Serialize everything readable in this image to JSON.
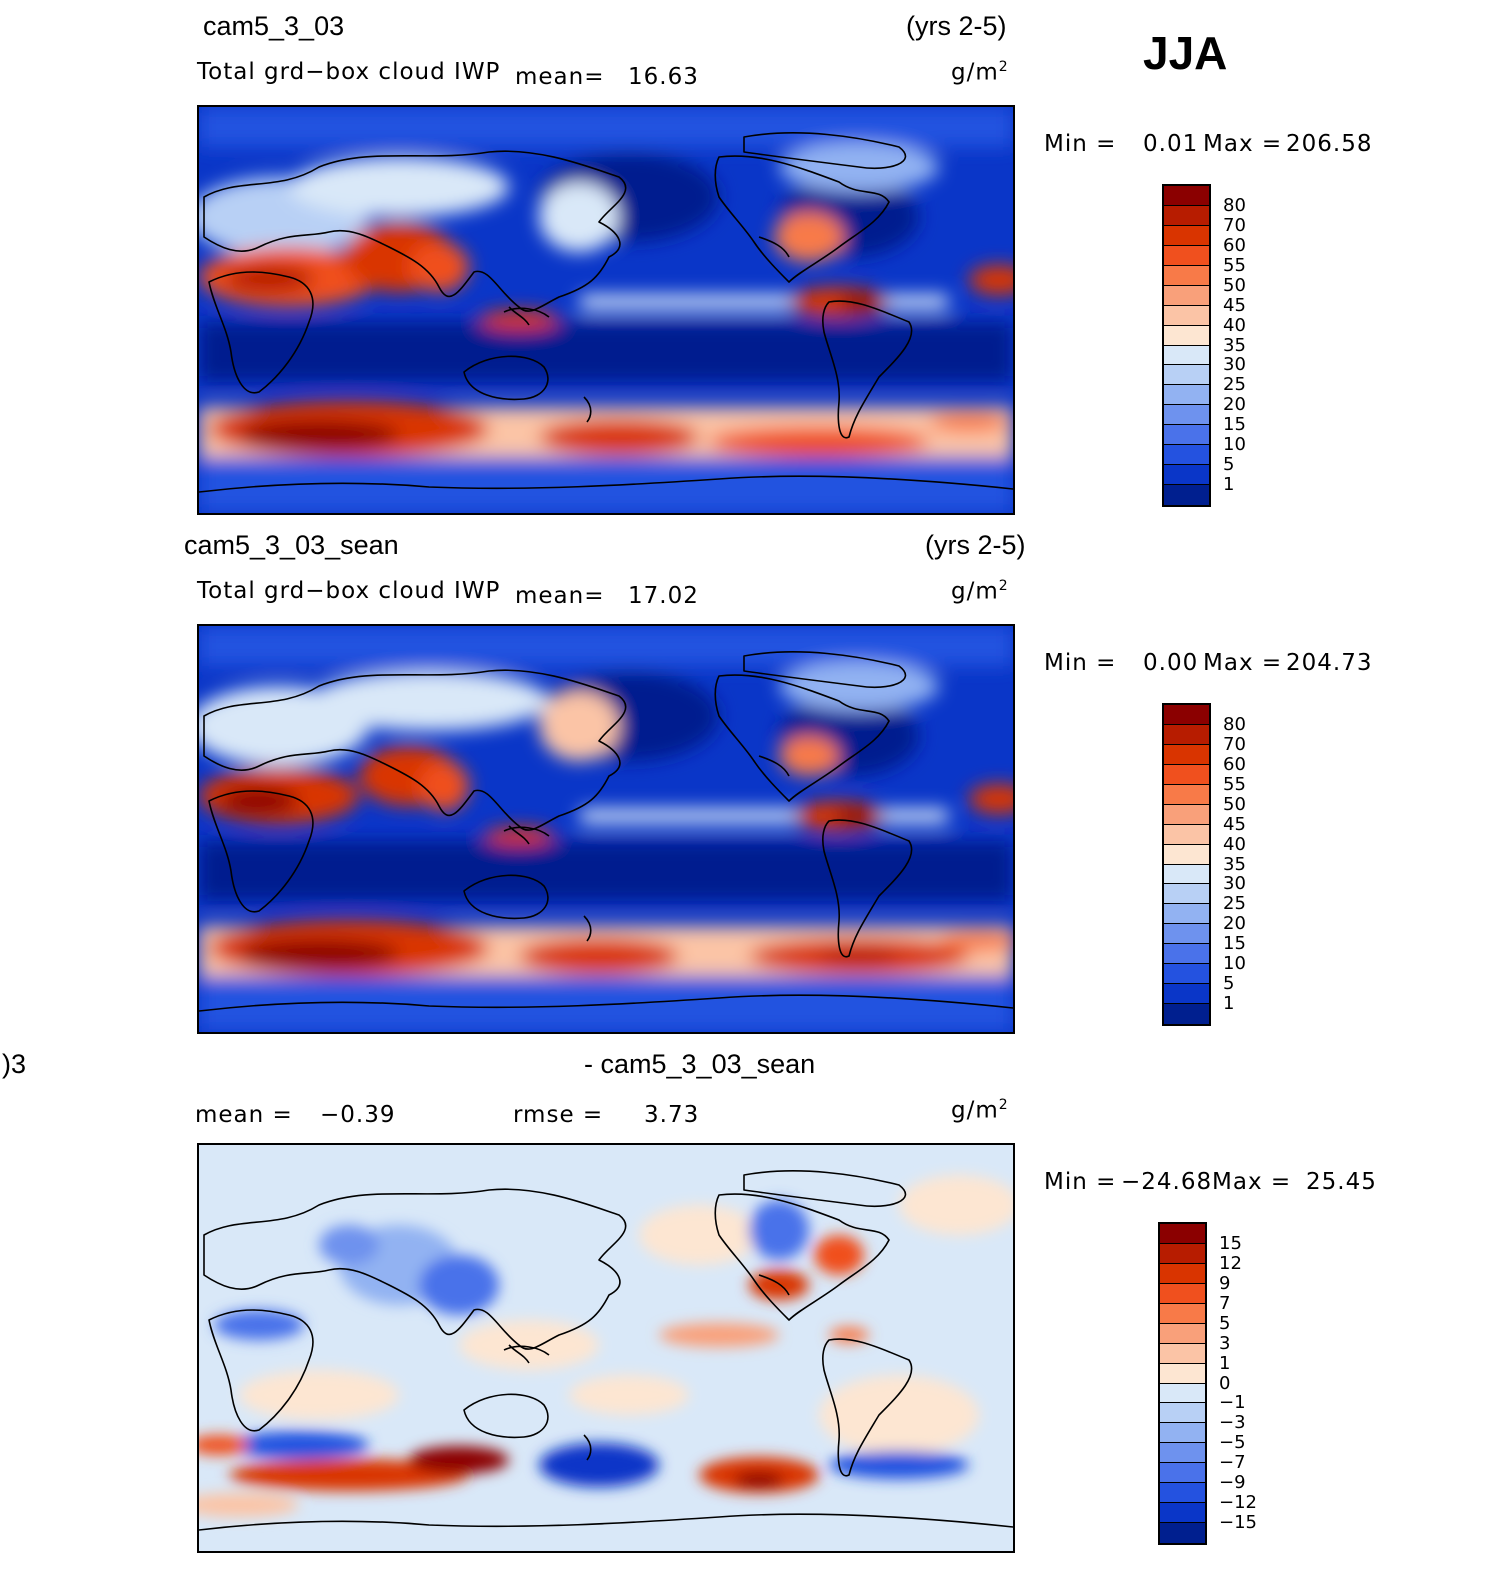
{
  "season": "JJA",
  "panels": [
    {
      "case": "cam5_3_03",
      "years": "(yrs 2-5)",
      "variable": "Total grd−box cloud IWP",
      "mean_label": "mean=",
      "mean_value": "16.63",
      "units": "g/m",
      "units_exp": "2",
      "stats": {
        "min_label": "Min =",
        "min_value": "0.01",
        "max_label": "Max =",
        "max_value": "206.58"
      },
      "colorbar": {
        "levels": [
          "80",
          "70",
          "60",
          "55",
          "50",
          "45",
          "40",
          "35",
          "30",
          "25",
          "20",
          "15",
          "10",
          "5",
          "1"
        ],
        "colors": [
          "#8b0000",
          "#b71c00",
          "#d93400",
          "#f0501e",
          "#f87a48",
          "#f9a07a",
          "#fbc4a6",
          "#fde6d2",
          "#d9e8f8",
          "#b8d0f5",
          "#92b2f2",
          "#6e92ee",
          "#4a72ea",
          "#2452e0",
          "#0a36c8",
          "#001f8f"
        ]
      }
    },
    {
      "case": "cam5_3_03_sean",
      "years": "(yrs 2-5)",
      "variable": "Total grd−box cloud IWP",
      "mean_label": "mean=",
      "mean_value": "17.02",
      "units": "g/m",
      "units_exp": "2",
      "stats": {
        "min_label": "Min =",
        "min_value": "0.00",
        "max_label": "Max =",
        "max_value": "204.73"
      },
      "colorbar": {
        "levels": [
          "80",
          "70",
          "60",
          "55",
          "50",
          "45",
          "40",
          "35",
          "30",
          "25",
          "20",
          "15",
          "10",
          "5",
          "1"
        ],
        "colors": [
          "#8b0000",
          "#b71c00",
          "#d93400",
          "#f0501e",
          "#f87a48",
          "#f9a07a",
          "#fbc4a6",
          "#fde6d2",
          "#d9e8f8",
          "#b8d0f5",
          "#92b2f2",
          "#6e92ee",
          "#4a72ea",
          "#2452e0",
          "#0a36c8",
          "#001f8f"
        ]
      }
    },
    {
      "case_left": ")3",
      "case": "- cam5_3_03_sean",
      "mean_label": "mean =",
      "mean_value": "−0.39",
      "rmse_label": "rmse =",
      "rmse_value": "3.73",
      "units": "g/m",
      "units_exp": "2",
      "stats": {
        "min_label": "Min =",
        "min_value": "−24.68",
        "max_label": "Max =",
        "max_value": "25.45"
      },
      "colorbar": {
        "levels": [
          "15",
          "12",
          "9",
          "7",
          "5",
          "3",
          "1",
          "0",
          "−1",
          "−3",
          "−5",
          "−7",
          "−9",
          "−12",
          "−15"
        ],
        "colors": [
          "#8b0000",
          "#b71c00",
          "#d93400",
          "#f0501e",
          "#f87a48",
          "#f9a07a",
          "#fbc4a6",
          "#fde6d2",
          "#d9e8f8",
          "#b8d0f5",
          "#92b2f2",
          "#6e92ee",
          "#4a72ea",
          "#2452e0",
          "#0a36c8",
          "#001f8f"
        ]
      }
    }
  ]
}
